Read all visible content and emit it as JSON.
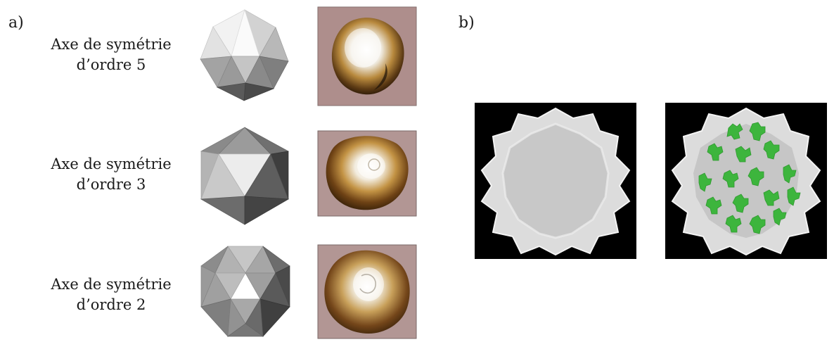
{
  "panel_a": {
    "label": "a)",
    "rows": [
      {
        "line1": "Axe de symétrie",
        "line2": "d’ordre 5"
      },
      {
        "line1": "Axe de symétrie",
        "line2": "d’ordre 3"
      },
      {
        "line1": "Axe de symétrie",
        "line2": "d’ordre 2"
      }
    ]
  },
  "panel_b": {
    "label": "b)",
    "colors": {
      "background": "#000000",
      "capsid": "#d4d4d4",
      "highlight": "#3db53d"
    }
  },
  "colors": {
    "afm_background": "#b79a98",
    "afm_gold": "#a7782f"
  }
}
